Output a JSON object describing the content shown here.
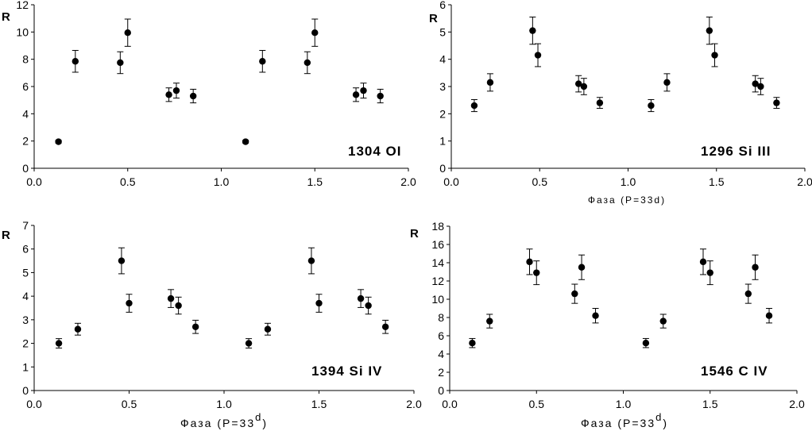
{
  "chart_data": [
    {
      "type": "scatter",
      "title": "1304 OI",
      "xlabel": "",
      "ylabel": "R",
      "xlim": [
        0,
        2
      ],
      "ylim": [
        0,
        12
      ],
      "xticks": [
        "0.0",
        "0.5",
        "1.0",
        "1.5",
        "2.0"
      ],
      "yticks": [
        "0",
        "2",
        "4",
        "6",
        "8",
        "10",
        "12"
      ],
      "points": [
        {
          "x": 0.13,
          "y": 1.95,
          "err": 0.1
        },
        {
          "x": 0.22,
          "y": 7.85,
          "err": 0.8
        },
        {
          "x": 0.46,
          "y": 7.75,
          "err": 0.8
        },
        {
          "x": 0.5,
          "y": 9.95,
          "err": 1.0
        },
        {
          "x": 0.72,
          "y": 5.4,
          "err": 0.5
        },
        {
          "x": 0.76,
          "y": 5.7,
          "err": 0.55
        },
        {
          "x": 0.85,
          "y": 5.3,
          "err": 0.5
        },
        {
          "x": 1.13,
          "y": 1.95,
          "err": 0.1
        },
        {
          "x": 1.22,
          "y": 7.85,
          "err": 0.8
        },
        {
          "x": 1.46,
          "y": 7.75,
          "err": 0.8
        },
        {
          "x": 1.5,
          "y": 9.95,
          "err": 1.0
        },
        {
          "x": 1.72,
          "y": 5.4,
          "err": 0.5
        },
        {
          "x": 1.76,
          "y": 5.7,
          "err": 0.55
        },
        {
          "x": 1.85,
          "y": 5.3,
          "err": 0.5
        }
      ]
    },
    {
      "type": "scatter",
      "title": "1296 Si III",
      "xlabel": "Фаза (Р=33d)",
      "ylabel": "R",
      "xlim": [
        0,
        2
      ],
      "ylim": [
        0,
        6
      ],
      "xticks": [
        "0.0",
        "0.5",
        "1.0",
        "1.5",
        "2.0"
      ],
      "yticks": [
        "0",
        "1",
        "2",
        "3",
        "4",
        "5",
        "6"
      ],
      "points": [
        {
          "x": 0.13,
          "y": 2.3,
          "err": 0.22
        },
        {
          "x": 0.22,
          "y": 3.15,
          "err": 0.32
        },
        {
          "x": 0.46,
          "y": 5.05,
          "err": 0.5
        },
        {
          "x": 0.49,
          "y": 4.15,
          "err": 0.42
        },
        {
          "x": 0.72,
          "y": 3.1,
          "err": 0.3
        },
        {
          "x": 0.75,
          "y": 3.0,
          "err": 0.3
        },
        {
          "x": 0.84,
          "y": 2.4,
          "err": 0.2
        },
        {
          "x": 1.13,
          "y": 2.3,
          "err": 0.22
        },
        {
          "x": 1.22,
          "y": 3.15,
          "err": 0.32
        },
        {
          "x": 1.46,
          "y": 5.05,
          "err": 0.5
        },
        {
          "x": 1.49,
          "y": 4.15,
          "err": 0.42
        },
        {
          "x": 1.72,
          "y": 3.1,
          "err": 0.3
        },
        {
          "x": 1.75,
          "y": 3.0,
          "err": 0.3
        },
        {
          "x": 1.84,
          "y": 2.4,
          "err": 0.2
        }
      ]
    },
    {
      "type": "scatter",
      "title": "1394 Si IV",
      "xlabel_main": "Фаза (Р=33",
      "xlabel_sup": "d",
      "xlabel_end": ")",
      "ylabel": "R",
      "xlim": [
        0,
        2
      ],
      "ylim": [
        0,
        7
      ],
      "xticks": [
        "0.0",
        "0.5",
        "1.0",
        "1.5",
        "2.0"
      ],
      "yticks": [
        "0",
        "1",
        "2",
        "3",
        "4",
        "5",
        "6",
        "7"
      ],
      "points": [
        {
          "x": 0.13,
          "y": 2.0,
          "err": 0.2
        },
        {
          "x": 0.23,
          "y": 2.6,
          "err": 0.25
        },
        {
          "x": 0.46,
          "y": 5.5,
          "err": 0.55
        },
        {
          "x": 0.5,
          "y": 3.7,
          "err": 0.38
        },
        {
          "x": 0.72,
          "y": 3.9,
          "err": 0.38
        },
        {
          "x": 0.76,
          "y": 3.6,
          "err": 0.36
        },
        {
          "x": 0.85,
          "y": 2.7,
          "err": 0.28
        },
        {
          "x": 1.13,
          "y": 2.0,
          "err": 0.2
        },
        {
          "x": 1.23,
          "y": 2.6,
          "err": 0.25
        },
        {
          "x": 1.46,
          "y": 5.5,
          "err": 0.55
        },
        {
          "x": 1.5,
          "y": 3.7,
          "err": 0.38
        },
        {
          "x": 1.72,
          "y": 3.9,
          "err": 0.38
        },
        {
          "x": 1.76,
          "y": 3.6,
          "err": 0.36
        },
        {
          "x": 1.85,
          "y": 2.7,
          "err": 0.28
        }
      ]
    },
    {
      "type": "scatter",
      "title": "1546 C IV",
      "xlabel_main": "Фаза (Р=33",
      "xlabel_sup": "d",
      "xlabel_end": ")",
      "ylabel": "R",
      "xlim": [
        0,
        2
      ],
      "ylim": [
        0,
        18
      ],
      "xticks": [
        "0.0",
        "0.5",
        "1.0",
        "1.5",
        "2.0"
      ],
      "yticks": [
        "0",
        "2",
        "4",
        "6",
        "8",
        "10",
        "12",
        "14",
        "16",
        "18"
      ],
      "points": [
        {
          "x": 0.13,
          "y": 5.2,
          "err": 0.5
        },
        {
          "x": 0.23,
          "y": 7.6,
          "err": 0.75
        },
        {
          "x": 0.46,
          "y": 14.1,
          "err": 1.4
        },
        {
          "x": 0.5,
          "y": 12.9,
          "err": 1.3
        },
        {
          "x": 0.72,
          "y": 10.6,
          "err": 1.05
        },
        {
          "x": 0.76,
          "y": 13.5,
          "err": 1.35
        },
        {
          "x": 0.84,
          "y": 8.2,
          "err": 0.8
        },
        {
          "x": 1.13,
          "y": 5.2,
          "err": 0.5
        },
        {
          "x": 1.23,
          "y": 7.6,
          "err": 0.75
        },
        {
          "x": 1.46,
          "y": 14.1,
          "err": 1.4
        },
        {
          "x": 1.5,
          "y": 12.9,
          "err": 1.3
        },
        {
          "x": 1.72,
          "y": 10.6,
          "err": 1.05
        },
        {
          "x": 1.76,
          "y": 13.5,
          "err": 1.35
        },
        {
          "x": 1.84,
          "y": 8.2,
          "err": 0.8
        }
      ]
    }
  ]
}
